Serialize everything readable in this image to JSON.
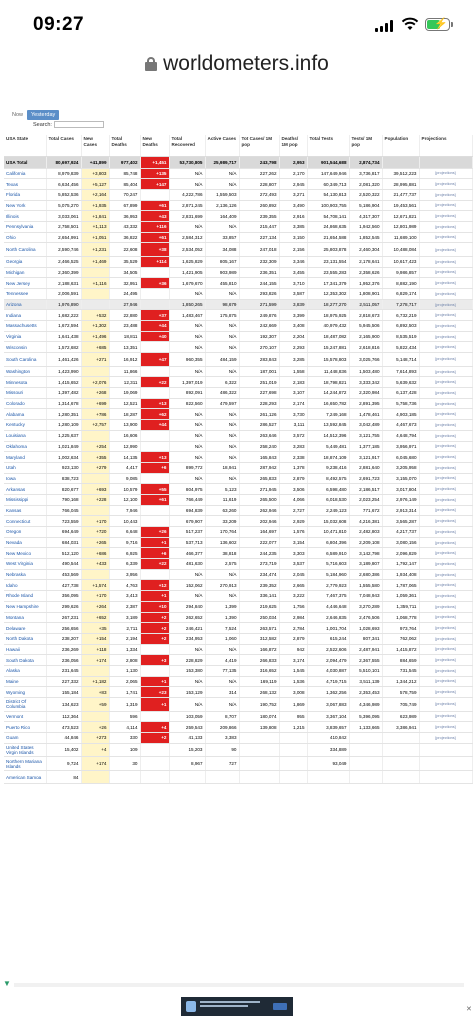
{
  "status": {
    "time": "09:27"
  },
  "browser": {
    "url": "worldometers.info"
  },
  "tabs": [
    "Now",
    "Yesterday"
  ],
  "search_label": "Search:",
  "headers": [
    "USA State",
    "Total Cases",
    "New Cases",
    "Total Deaths",
    "New Deaths",
    "Total Recovered",
    "Active Cases",
    "Tot Cases/ 1M pop",
    "Deaths/ 1M pop",
    "Total Tests",
    "Tests/ 1M pop",
    "Population",
    "Projections"
  ],
  "total": [
    "USA Total",
    "80,697,924",
    "+41,899",
    "977,402",
    "+1,451",
    "53,730,805",
    "25,989,717",
    "243,798",
    "2,953",
    "901,544,688",
    "2,874,734",
    "",
    ""
  ],
  "rows": [
    [
      "California",
      "8,979,839",
      "+3,803",
      "85,748",
      "+135",
      "N/A",
      "N/A",
      "227,262",
      "2,170",
      "147,649,946",
      "3,736,817",
      "39,512,223",
      "[projections]"
    ],
    [
      "Texas",
      "6,634,456",
      "+5,127",
      "85,404",
      "+147",
      "N/A",
      "N/A",
      "228,807",
      "2,945",
      "60,349,713",
      "2,081,320",
      "28,995,881",
      "[projections]"
    ],
    [
      "Florida",
      "5,852,536",
      "+2,164",
      "70,247",
      "",
      "4,222,786",
      "1,559,503",
      "272,493",
      "3,271",
      "54,130,813",
      "2,520,322",
      "21,477,737",
      "[projections]"
    ],
    [
      "New York",
      "5,075,270",
      "+1,935",
      "67,899",
      "+61",
      "2,871,245",
      "2,136,126",
      "260,892",
      "3,490",
      "100,903,755",
      "5,186,904",
      "19,453,561",
      "[projections]"
    ],
    [
      "Illinois",
      "3,033,061",
      "+1,841",
      "36,953",
      "+43",
      "2,831,699",
      "164,409",
      "239,355",
      "2,916",
      "54,708,141",
      "4,317,307",
      "12,671,821",
      "[projections]"
    ],
    [
      "Pennsylvania",
      "2,758,501",
      "+1,113",
      "43,332",
      "+116",
      "N/A",
      "N/A",
      "215,447",
      "3,385",
      "24,868,635",
      "1,942,560",
      "12,801,989",
      "[projections]"
    ],
    [
      "Ohio",
      "2,654,991",
      "+1,051",
      "36,822",
      "+61",
      "2,584,312",
      "33,857",
      "227,134",
      "3,150",
      "21,654,588",
      "1,852,545",
      "11,689,100",
      "[projections]"
    ],
    [
      "North Carolina",
      "2,590,746",
      "+1,231",
      "22,608",
      "+38",
      "2,534,052",
      "34,088",
      "247,018",
      "2,156",
      "25,803,878",
      "2,460,304",
      "10,488,084",
      "[projections]"
    ],
    [
      "Georgia",
      "2,466,525",
      "+1,469",
      "35,529",
      "+114",
      "1,625,829",
      "805,167",
      "232,309",
      "3,346",
      "23,131,554",
      "2,178,641",
      "10,617,423",
      "[projections]"
    ],
    [
      "Michigan",
      "2,360,399",
      "",
      "34,505",
      "",
      "1,421,905",
      "903,989",
      "236,351",
      "3,455",
      "23,555,283",
      "2,358,626",
      "9,986,857",
      "[projections]"
    ],
    [
      "New Jersey",
      "2,188,631",
      "+1,116",
      "32,951",
      "+36",
      "1,679,670",
      "455,810",
      "244,155",
      "3,710",
      "17,341,379",
      "1,952,376",
      "8,882,190",
      "[projections]"
    ],
    [
      "Tennessee",
      "2,006,591",
      "",
      "24,495",
      "",
      "N/A",
      "N/A",
      "293,826",
      "3,587",
      "12,353,302",
      "1,808,901",
      "6,829,174",
      "[projections]"
    ],
    [
      "Arizona",
      "1,976,890",
      "",
      "27,946",
      "",
      "1,850,265",
      "98,679",
      "271,599",
      "3,839",
      "18,277,270",
      "2,511,057",
      "7,278,717",
      "[projections]"
    ],
    [
      "Indiana",
      "1,682,222",
      "+532",
      "22,880",
      "+37",
      "1,483,467",
      "175,875",
      "249,876",
      "3,399",
      "18,975,925",
      "2,818,673",
      "6,732,219",
      "[projections]"
    ],
    [
      "Massachusetts",
      "1,672,594",
      "+1,302",
      "23,488",
      "+44",
      "N/A",
      "N/A",
      "242,669",
      "3,408",
      "40,979,432",
      "5,945,506",
      "6,892,503",
      "[projections]"
    ],
    [
      "Virginia",
      "1,641,438",
      "+1,496",
      "18,811",
      "+40",
      "N/A",
      "N/A",
      "192,307",
      "2,204",
      "18,487,082",
      "2,165,900",
      "8,535,519",
      "[projections]"
    ],
    [
      "Wisconsin",
      "1,572,682",
      "+685",
      "13,351",
      "",
      "N/A",
      "N/A",
      "270,107",
      "2,293",
      "15,247,881",
      "2,618,816",
      "5,822,434",
      "[projections]"
    ],
    [
      "South Carolina",
      "1,461,426",
      "+271",
      "16,912",
      "+47",
      "960,355",
      "484,159",
      "283,843",
      "3,285",
      "15,578,803",
      "3,025,766",
      "5,148,714",
      "[projections]"
    ],
    [
      "Washington",
      "1,423,990",
      "",
      "11,866",
      "",
      "N/A",
      "N/A",
      "187,001",
      "1,558",
      "11,448,836",
      "1,503,480",
      "7,614,893",
      "[projections]"
    ],
    [
      "Minnesota",
      "1,415,652",
      "+2,076",
      "12,311",
      "+22",
      "1,397,019",
      "6,322",
      "251,019",
      "2,183",
      "18,798,821",
      "3,333,342",
      "5,639,632",
      "[projections]"
    ],
    [
      "Missouri",
      "1,397,482",
      "+268",
      "19,069",
      "",
      "892,091",
      "486,322",
      "227,698",
      "3,107",
      "14,244,872",
      "2,320,984",
      "6,137,428",
      "[projections]"
    ],
    [
      "Colorado",
      "1,314,678",
      "+699",
      "12,521",
      "+13",
      "822,560",
      "479,597",
      "228,293",
      "2,174",
      "16,650,782",
      "2,891,395",
      "5,758,736",
      "[projections]"
    ],
    [
      "Alabama",
      "1,280,351",
      "+786",
      "18,287",
      "+62",
      "N/A",
      "N/A",
      "261,126",
      "3,730",
      "7,249,168",
      "1,478,461",
      "4,903,185",
      "[projections]"
    ],
    [
      "Kentucky",
      "1,280,109",
      "+2,757",
      "13,900",
      "+44",
      "N/A",
      "N/A",
      "286,527",
      "3,111",
      "13,592,845",
      "3,042,489",
      "4,467,673",
      "[projections]"
    ],
    [
      "Louisiana",
      "1,225,637",
      "",
      "16,606",
      "",
      "N/A",
      "N/A",
      "263,646",
      "3,572",
      "14,512,396",
      "3,121,755",
      "4,648,794",
      "[projections]"
    ],
    [
      "Oklahoma",
      "1,021,849",
      "+254",
      "12,990",
      "",
      "N/A",
      "N/A",
      "258,240",
      "3,283",
      "5,449,481",
      "1,377,185",
      "3,956,971",
      "[projections]"
    ],
    [
      "Maryland",
      "1,002,634",
      "+355",
      "14,135",
      "+13",
      "N/A",
      "N/A",
      "165,843",
      "2,338",
      "18,874,109",
      "3,121,917",
      "6,045,680",
      "[projections]"
    ],
    [
      "Utah",
      "923,130",
      "+279",
      "4,417",
      "+6",
      "899,772",
      "18,941",
      "287,942",
      "1,378",
      "9,238,416",
      "2,881,640",
      "3,205,958",
      "[projections]"
    ],
    [
      "Iowa",
      "838,723",
      "",
      "9,085",
      "",
      "N/A",
      "N/A",
      "265,833",
      "2,879",
      "8,492,575",
      "2,691,723",
      "3,155,070",
      "[projections]"
    ],
    [
      "Arkansas",
      "820,677",
      "+693",
      "10,579",
      "+55",
      "804,975",
      "5,123",
      "271,945",
      "3,506",
      "6,598,480",
      "2,186,517",
      "3,017,804",
      "[projections]"
    ],
    [
      "Mississippi",
      "790,168",
      "+228",
      "12,100",
      "+61",
      "766,449",
      "11,619",
      "265,500",
      "4,066",
      "6,018,530",
      "2,023,254",
      "2,976,149",
      "[projections]"
    ],
    [
      "Kansas",
      "766,045",
      "",
      "7,946",
      "",
      "694,839",
      "63,260",
      "262,946",
      "2,727",
      "2,249,123",
      "771,672",
      "2,913,314",
      "[projections]"
    ],
    [
      "Connecticut",
      "723,559",
      "+170",
      "10,443",
      "",
      "679,907",
      "33,209",
      "202,946",
      "2,929",
      "15,032,608",
      "4,216,381",
      "3,565,287",
      "[projections]"
    ],
    [
      "Oregon",
      "694,649",
      "+720",
      "6,648",
      "+26",
      "517,237",
      "170,764",
      "164,697",
      "1,576",
      "10,471,810",
      "2,482,803",
      "4,217,737",
      "[projections]"
    ],
    [
      "Nevada",
      "684,031",
      "+265",
      "9,716",
      "+1",
      "537,713",
      "136,602",
      "222,077",
      "3,154",
      "6,804,396",
      "2,209,108",
      "3,080,156",
      "[projections]"
    ],
    [
      "New Mexico",
      "512,120",
      "+686",
      "6,925",
      "+6",
      "466,377",
      "38,818",
      "244,235",
      "3,303",
      "6,589,910",
      "3,142,798",
      "2,096,829",
      "[projections]"
    ],
    [
      "West Virginia",
      "490,544",
      "+433",
      "6,339",
      "+22",
      "481,630",
      "2,575",
      "273,719",
      "3,537",
      "5,716,603",
      "3,189,807",
      "1,792,147",
      "[projections]"
    ],
    [
      "Nebraska",
      "453,569",
      "",
      "3,956",
      "",
      "N/A",
      "N/A",
      "234,474",
      "2,045",
      "5,184,960",
      "2,680,386",
      "1,934,408",
      "[projections]"
    ],
    [
      "Idaho",
      "427,738",
      "+1,574",
      "4,763",
      "+12",
      "152,062",
      "270,913",
      "239,352",
      "2,665",
      "2,779,923",
      "1,555,580",
      "1,787,065",
      "[projections]"
    ],
    [
      "Rhode Island",
      "356,095",
      "+170",
      "3,413",
      "+1",
      "N/A",
      "N/A",
      "336,141",
      "3,222",
      "7,467,375",
      "7,048,943",
      "1,059,361",
      "[projections]"
    ],
    [
      "New Hampshire",
      "299,626",
      "+264",
      "2,387",
      "+10",
      "294,840",
      "1,399",
      "219,625",
      "1,756",
      "4,446,648",
      "3,270,289",
      "1,359,711",
      "[projections]"
    ],
    [
      "Montana",
      "267,231",
      "+652",
      "3,189",
      "+2",
      "262,652",
      "1,390",
      "250,034",
      "2,984",
      "2,646,835",
      "2,476,506",
      "1,068,778",
      "[projections]"
    ],
    [
      "Delaware",
      "256,656",
      "+35",
      "2,711",
      "+2",
      "246,421",
      "7,524",
      "263,571",
      "2,784",
      "1,001,704",
      "1,028,693",
      "973,764",
      "[projections]"
    ],
    [
      "North Dakota",
      "238,207",
      "+154",
      "2,194",
      "+2",
      "234,953",
      "1,060",
      "312,582",
      "2,879",
      "615,244",
      "807,341",
      "762,062",
      "[projections]"
    ],
    [
      "Hawaii",
      "236,269",
      "+118",
      "1,334",
      "",
      "N/A",
      "N/A",
      "166,872",
      "942",
      "2,522,606",
      "2,487,941",
      "1,415,872",
      "[projections]"
    ],
    [
      "South Dakota",
      "236,056",
      "+174",
      "2,808",
      "+3",
      "228,829",
      "4,419",
      "266,833",
      "3,174",
      "2,094,479",
      "2,367,555",
      "884,659",
      "[projections]"
    ],
    [
      "Alaska",
      "231,645",
      "",
      "1,130",
      "",
      "153,380",
      "77,135",
      "316,652",
      "1,545",
      "4,030,887",
      "5,510,101",
      "731,545",
      "[projections]"
    ],
    [
      "Maine",
      "227,332",
      "+1,182",
      "2,065",
      "+1",
      "N/A",
      "N/A",
      "169,119",
      "1,536",
      "4,719,715",
      "3,511,139",
      "1,344,212",
      "[projections]"
    ],
    [
      "Wyoming",
      "155,184",
      "+83",
      "1,741",
      "+23",
      "153,129",
      "314",
      "268,132",
      "3,008",
      "1,362,256",
      "2,353,453",
      "578,759",
      "[projections]"
    ],
    [
      "District Of Columbia",
      "134,623",
      "+59",
      "1,319",
      "+1",
      "N/A",
      "N/A",
      "190,752",
      "1,869",
      "3,067,883",
      "4,346,989",
      "705,749",
      "[projections]"
    ],
    [
      "Vermont",
      "112,364",
      "",
      "596",
      "",
      "103,059",
      "8,707",
      "180,074",
      "955",
      "3,367,104",
      "5,396,095",
      "623,989",
      "[projections]"
    ],
    [
      "Puerto Rico",
      "473,523",
      "+26",
      "4,114",
      "+4",
      "259,543",
      "209,866",
      "139,808",
      "1,215",
      "3,839,657",
      "1,133,665",
      "3,386,941",
      "[projections]"
    ],
    [
      "Guam",
      "44,846",
      "+273",
      "330",
      "+2",
      "41,133",
      "3,383",
      "",
      "",
      "410,842",
      "",
      "",
      "[projections]"
    ],
    [
      "United States Virgin Islands",
      "15,402",
      "+4",
      "109",
      "",
      "15,203",
      "90",
      "",
      "",
      "334,889",
      "",
      "",
      ""
    ],
    [
      "Northern Mariana Islands",
      "9,724",
      "+174",
      "30",
      "",
      "8,967",
      "727",
      "",
      "",
      "93,049",
      "",
      "",
      ""
    ],
    [
      "American Samoa",
      "84",
      "",
      "",
      "",
      "",
      "",
      "",
      "",
      "",
      "",
      "",
      ""
    ]
  ]
}
